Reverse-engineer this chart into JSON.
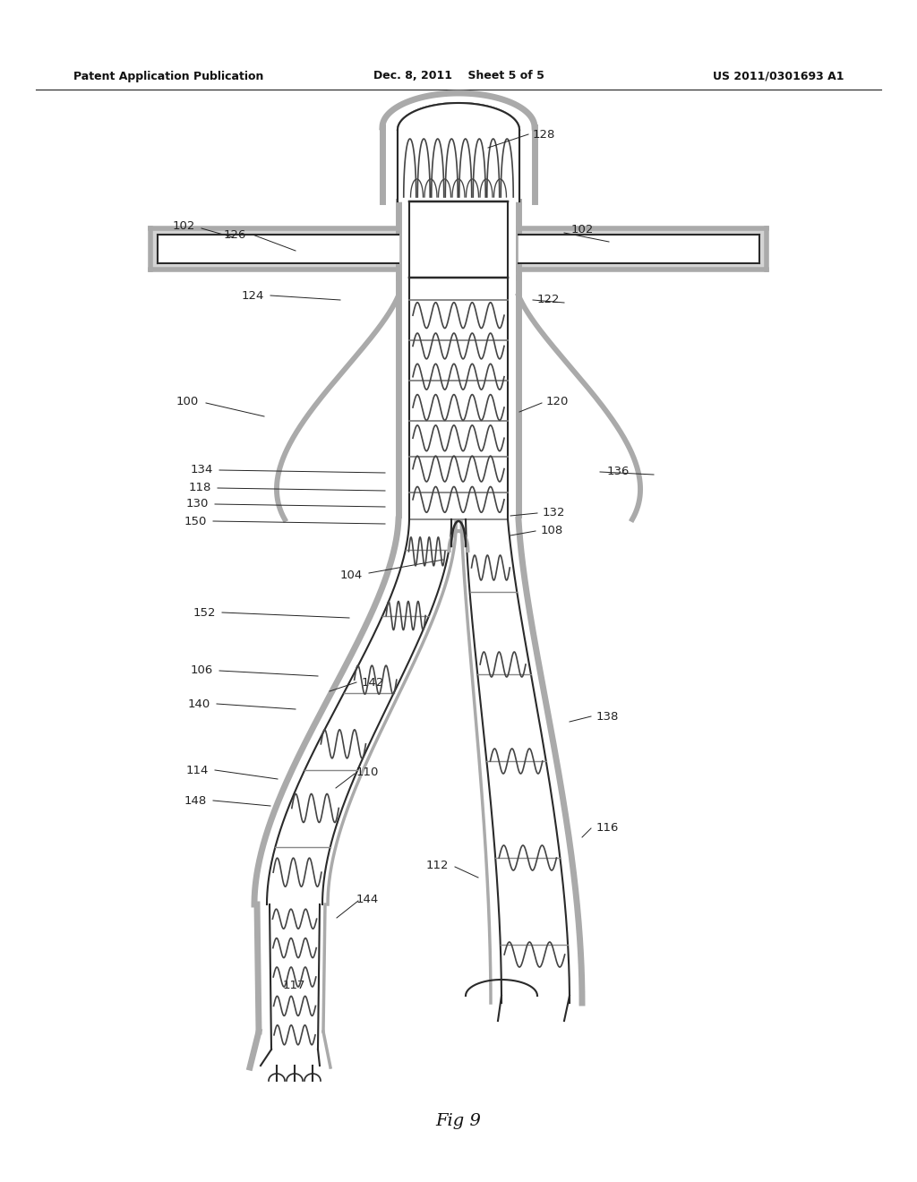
{
  "title_left": "Patent Application Publication",
  "title_center": "Dec. 8, 2011    Sheet 5 of 5",
  "title_right": "US 2011/0301693 A1",
  "fig_label": "Fig 9",
  "background_color": "#ffffff",
  "line_color": "#2a2a2a",
  "wall_color": "#aaaaaa",
  "stent_color": "#444444",
  "label_color": "#111111"
}
